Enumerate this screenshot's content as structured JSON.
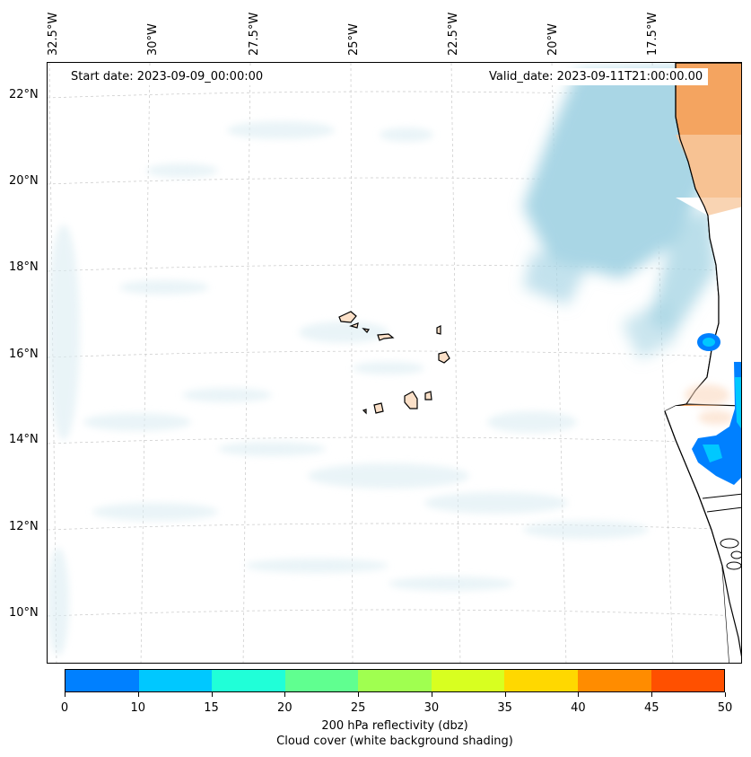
{
  "map": {
    "start_date": "Start date: 2023-09-09_00:00:00",
    "valid_date": "Valid_date: 2023-09-11T21:00:00.00",
    "lon_labels": [
      "32.5°W",
      "30°W",
      "27.5°W",
      "25°W",
      "22.5°W",
      "20°W",
      "17.5°W"
    ],
    "lat_labels": [
      "22°N",
      "20°N",
      "18°N",
      "16°N",
      "14°N",
      "12°N",
      "10°N"
    ]
  },
  "colorbar": {
    "ticks": [
      "0",
      "10",
      "15",
      "20",
      "25",
      "30",
      "35",
      "40",
      "45",
      "50"
    ],
    "colors": [
      "#0080ff",
      "#00c8ff",
      "#20ffd8",
      "#60ff90",
      "#a0ff50",
      "#d8ff20",
      "#ffd800",
      "#ff8c00",
      "#ff5000"
    ],
    "label": "200 hPa reflectivity (dbz)",
    "sublabel": "Cloud cover (white background shading)"
  }
}
